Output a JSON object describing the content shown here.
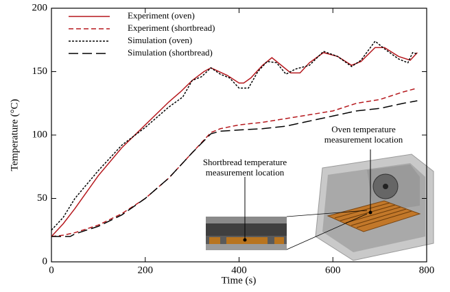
{
  "chart_data": {
    "type": "line",
    "x_label": "Time (s)",
    "y_label": "Temperature (°C)",
    "xlim": [
      0,
      800
    ],
    "ylim": [
      0,
      200
    ],
    "xticks": [
      0,
      200,
      400,
      600,
      800
    ],
    "yticks": [
      0,
      50,
      100,
      150,
      200
    ],
    "legend": "upper left",
    "series": [
      {
        "name": "Experiment (oven)",
        "color": "#b5171c",
        "line_style": "solid",
        "x": [
          0,
          25,
          50,
          100,
          150,
          200,
          250,
          275,
          300,
          325,
          340,
          375,
          400,
          410,
          425,
          450,
          470,
          490,
          510,
          530,
          550,
          580,
          610,
          640,
          660,
          690,
          710,
          740,
          765,
          780
        ],
        "values": [
          20,
          30,
          42,
          68,
          90,
          108,
          126,
          134,
          143,
          150,
          153,
          147,
          141,
          141,
          145,
          155,
          161,
          155,
          149,
          149,
          157,
          165,
          162,
          155,
          158,
          169,
          169,
          162,
          159,
          165
        ]
      },
      {
        "name": "Experiment (shortbread)",
        "color": "#b5171c",
        "line_style": "dashed",
        "x": [
          0,
          25,
          50,
          100,
          150,
          200,
          250,
          300,
          340,
          360,
          400,
          450,
          500,
          550,
          600,
          650,
          700,
          750,
          780
        ],
        "values": [
          20,
          21,
          23,
          29,
          38,
          50,
          66,
          86,
          102,
          105,
          108,
          110,
          113,
          116,
          119,
          125,
          128,
          134,
          137
        ]
      },
      {
        "name": "Simulation (oven)",
        "color": "#000000",
        "line_style": "dotted",
        "x": [
          0,
          25,
          50,
          100,
          150,
          200,
          250,
          280,
          300,
          320,
          340,
          360,
          380,
          400,
          420,
          440,
          460,
          480,
          500,
          520,
          550,
          580,
          610,
          640,
          660,
          690,
          710,
          740,
          760,
          770,
          780
        ],
        "values": [
          25,
          35,
          50,
          72,
          92,
          106,
          122,
          130,
          143,
          146,
          153,
          148,
          145,
          137,
          137,
          150,
          158,
          157,
          148,
          152,
          155,
          166,
          162,
          154,
          159,
          174,
          168,
          160,
          157,
          165,
          164
        ]
      },
      {
        "name": "Simulation (shortbread)",
        "color": "#000000",
        "line_style": "long-dashed",
        "x": [
          0,
          40,
          50,
          100,
          150,
          200,
          250,
          300,
          340,
          360,
          400,
          450,
          500,
          550,
          600,
          650,
          700,
          750,
          780
        ],
        "values": [
          20,
          20,
          22,
          28,
          37,
          50,
          66,
          86,
          101,
          103,
          104,
          105,
          107,
          111,
          115,
          119,
          121,
          125,
          127
        ]
      }
    ],
    "annotations": [
      [
        "Oven temperature",
        "measurement location"
      ],
      [
        "Shortbread temperature",
        "measurement location"
      ]
    ]
  }
}
